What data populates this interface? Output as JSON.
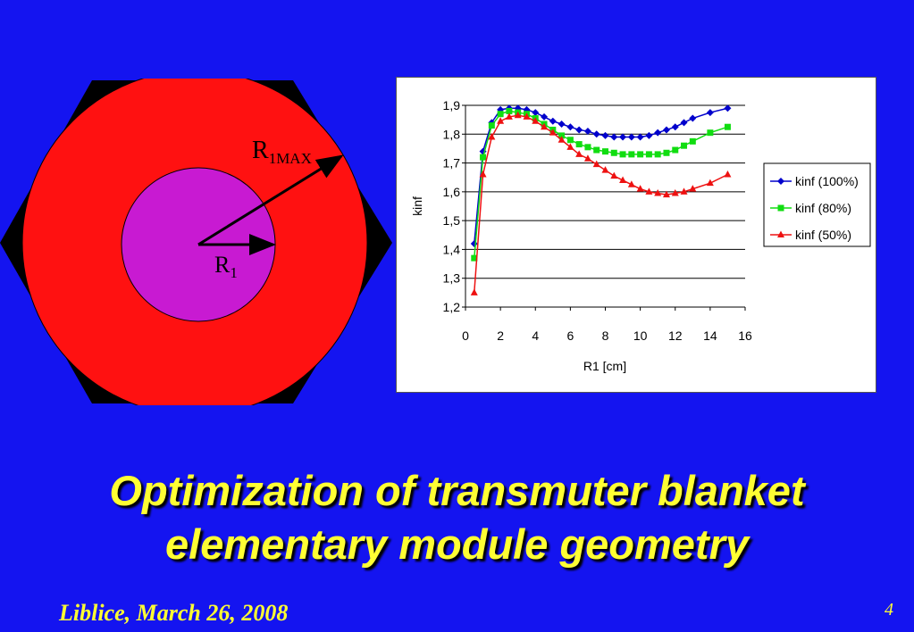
{
  "slide": {
    "title_line1": "Optimization of transmuter blanket",
    "title_line2": "elementary module geometry",
    "footer_date": "Liblice, March 26, 2008",
    "page_number": "4",
    "background_color": "#1414f0",
    "title_color": "#ffff33"
  },
  "diagram": {
    "outer_label_main": "R",
    "outer_label_sub": "1MAX",
    "inner_label_main": "R",
    "inner_label_sub": "1",
    "hexagon_color": "#000000",
    "outer_circle_color": "#ff1111",
    "inner_circle_color": "#c81ad2"
  },
  "chart_data": {
    "type": "line",
    "xlabel": "R1 [cm]",
    "ylabel": "kinf",
    "xlim": [
      0,
      16
    ],
    "ylim": [
      1.2,
      1.9
    ],
    "x_ticks": [
      "0",
      "2",
      "4",
      "6",
      "8",
      "10",
      "12",
      "14",
      "16"
    ],
    "y_ticks": [
      "1,2",
      "1,3",
      "1,4",
      "1,5",
      "1,6",
      "1,7",
      "1,8",
      "1,9"
    ],
    "grid": "horizontal",
    "legend_position": "right",
    "series": [
      {
        "name": "kinf (100%)",
        "color": "#0000cc",
        "marker": "diamond",
        "x": [
          0.5,
          1,
          1.5,
          2,
          2.5,
          3,
          3.5,
          4,
          4.5,
          5,
          5.5,
          6,
          6.5,
          7,
          7.5,
          8,
          8.5,
          9,
          9.5,
          10,
          10.5,
          11,
          11.5,
          12,
          12.5,
          13,
          14,
          15
        ],
        "y": [
          1.42,
          1.74,
          1.84,
          1.885,
          1.89,
          1.89,
          1.885,
          1.875,
          1.86,
          1.845,
          1.835,
          1.825,
          1.815,
          1.81,
          1.8,
          1.795,
          1.79,
          1.79,
          1.79,
          1.79,
          1.795,
          1.805,
          1.815,
          1.825,
          1.84,
          1.855,
          1.875,
          1.89
        ]
      },
      {
        "name": "kinf (80%)",
        "color": "#11dd11",
        "marker": "square",
        "x": [
          0.5,
          1,
          1.5,
          2,
          2.5,
          3,
          3.5,
          4,
          4.5,
          5,
          5.5,
          6,
          6.5,
          7,
          7.5,
          8,
          8.5,
          9,
          9.5,
          10,
          10.5,
          11,
          11.5,
          12,
          12.5,
          13,
          14,
          15
        ],
        "y": [
          1.37,
          1.72,
          1.83,
          1.87,
          1.88,
          1.875,
          1.87,
          1.855,
          1.835,
          1.815,
          1.795,
          1.78,
          1.765,
          1.755,
          1.745,
          1.74,
          1.735,
          1.73,
          1.73,
          1.73,
          1.73,
          1.73,
          1.735,
          1.745,
          1.76,
          1.775,
          1.805,
          1.825
        ]
      },
      {
        "name": "kinf (50%)",
        "color": "#ee1111",
        "marker": "triangle",
        "x": [
          0.5,
          1,
          1.5,
          2,
          2.5,
          3,
          3.5,
          4,
          4.5,
          5,
          5.5,
          6,
          6.5,
          7,
          7.5,
          8,
          8.5,
          9,
          9.5,
          10,
          10.5,
          11,
          11.5,
          12,
          12.5,
          13,
          14,
          15
        ],
        "y": [
          1.25,
          1.66,
          1.79,
          1.845,
          1.86,
          1.865,
          1.86,
          1.845,
          1.825,
          1.805,
          1.78,
          1.755,
          1.73,
          1.715,
          1.695,
          1.675,
          1.655,
          1.64,
          1.625,
          1.61,
          1.6,
          1.595,
          1.59,
          1.595,
          1.6,
          1.61,
          1.63,
          1.66
        ]
      }
    ]
  }
}
